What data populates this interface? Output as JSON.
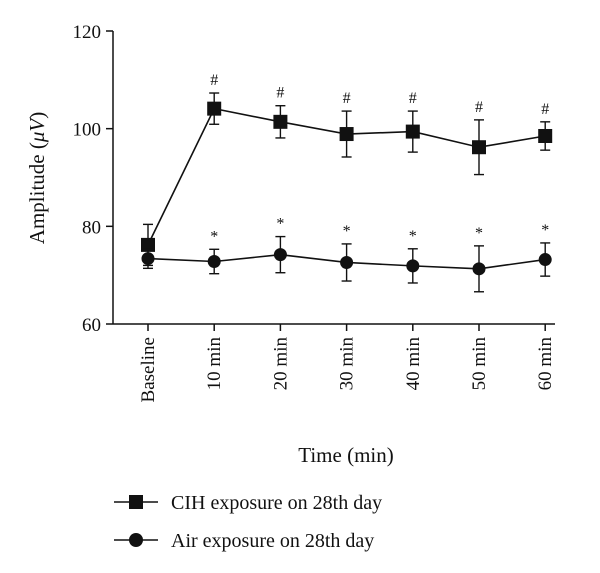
{
  "chart_data": {
    "type": "line",
    "xlabel": "Time (min)",
    "ylabel_main": "Amplitude (",
    "ylabel_unit": "μV",
    "ylabel_close": ")",
    "ylim": [
      60,
      120
    ],
    "yticks": [
      60,
      80,
      100,
      120
    ],
    "grid": false,
    "legend_position": "bottom",
    "categories": [
      "Baseline",
      "10 min",
      "20 min",
      "30 min",
      "40 min",
      "50 min",
      "60 min"
    ],
    "series": [
      {
        "name": "CIH exposure on 28th day",
        "marker": "square",
        "color": "#111111",
        "values": [
          76.2,
          104.1,
          101.4,
          98.9,
          99.4,
          96.2,
          98.5
        ],
        "error": [
          4.2,
          3.2,
          3.3,
          4.7,
          4.2,
          5.6,
          2.9
        ],
        "markers": [
          "",
          "#",
          "#",
          "#",
          "#",
          "#",
          "#"
        ]
      },
      {
        "name": "Air exposure on 28th day",
        "marker": "circle",
        "color": "#111111",
        "values": [
          73.4,
          72.8,
          74.2,
          72.6,
          71.9,
          71.3,
          73.2
        ],
        "error": [
          2.0,
          2.5,
          3.7,
          3.8,
          3.5,
          4.7,
          3.4
        ],
        "markers": [
          "",
          "*",
          "*",
          "*",
          "*",
          "*",
          "*"
        ]
      }
    ]
  }
}
